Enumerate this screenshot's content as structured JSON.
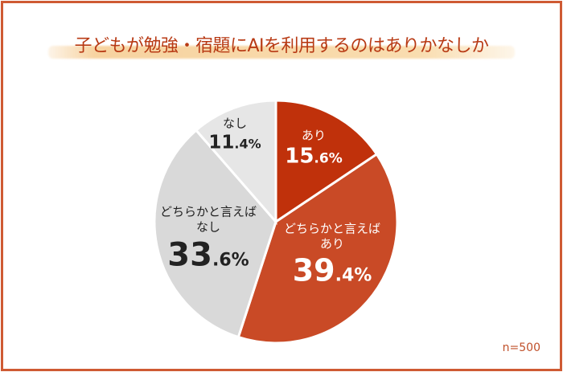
{
  "chart_data": {
    "type": "pie",
    "title": "子どもが勉強・宿題にAIを利用するのはありかなしか",
    "start": "top",
    "direction": "clockwise",
    "slices": [
      {
        "label": "あり",
        "value": 15.6,
        "color": "#c0310b",
        "text_color": "#ffffff"
      },
      {
        "label": "どちらかと言えば\nあり",
        "value": 39.4,
        "color": "#c94a26",
        "text_color": "#ffffff"
      },
      {
        "label": "どちらかと言えば\nなし",
        "value": 33.6,
        "color": "#d9d9d9",
        "text_color": "#222222"
      },
      {
        "label": "なし",
        "value": 11.4,
        "color": "#e6e6e6",
        "text_color": "#222222"
      }
    ],
    "note": "n=500",
    "legend": "none"
  },
  "colors": {
    "frame": "#cf5a33",
    "title": "#b83a14"
  }
}
